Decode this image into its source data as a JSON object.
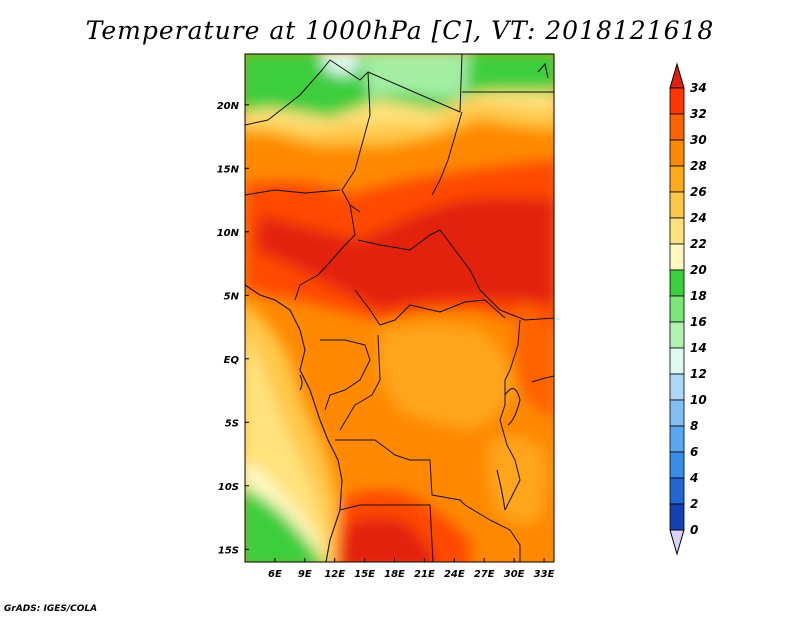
{
  "title": "Temperature at 1000hPa [C], VT: 2018121618",
  "credit": "GrADS: IGES/COLA",
  "map": {
    "region": "Central Africa",
    "variable": "Temperature at 1000hPa",
    "units": "C",
    "valid_time": "2018121618",
    "lon_range_deg": [
      3,
      34
    ],
    "lat_range_deg": [
      -16,
      24
    ],
    "lon_ticks": [
      "6E",
      "9E",
      "12E",
      "15E",
      "18E",
      "21E",
      "24E",
      "27E",
      "30E",
      "33E"
    ],
    "lon_tick_values": [
      6,
      9,
      12,
      15,
      18,
      21,
      24,
      27,
      30,
      33
    ],
    "lat_ticks": [
      "20N",
      "15N",
      "10N",
      "5N",
      "EQ",
      "5S",
      "10S",
      "15S"
    ],
    "lat_tick_values": [
      20,
      15,
      10,
      5,
      0,
      -5,
      -10,
      -15
    ]
  },
  "colorbar": {
    "labels": [
      "34",
      "32",
      "30",
      "28",
      "26",
      "24",
      "22",
      "20",
      "18",
      "16",
      "14",
      "12",
      "10",
      "8",
      "6",
      "4",
      "2",
      "0"
    ],
    "colors": [
      "#ff3600",
      "#ff6200",
      "#ff8900",
      "#ffaa1a",
      "#ffc84a",
      "#ffe27d",
      "#fdf9c0",
      "#3cce3c",
      "#7ae77a",
      "#b2f3b2",
      "#def9f0",
      "#acd7f7",
      "#82bff5",
      "#5aa8f2",
      "#378ee9",
      "#2167d6",
      "#1542b0",
      "#0b1f8a",
      "#0a0f6a"
    ],
    "over_color": "#e3200f",
    "under_color": "#d8d4f8"
  }
}
